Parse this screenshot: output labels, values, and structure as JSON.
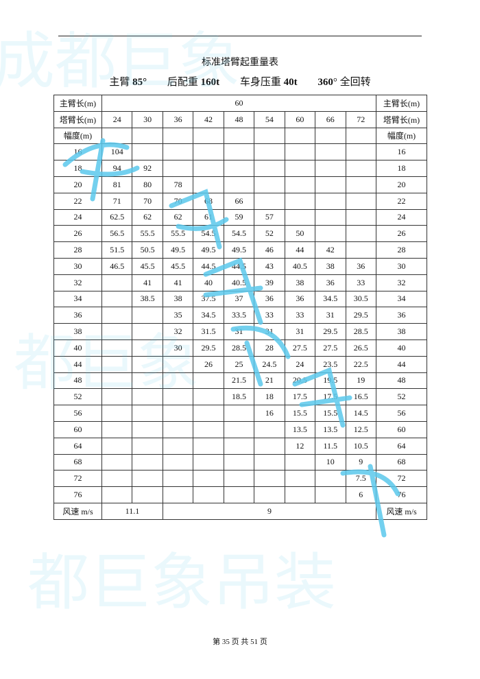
{
  "title": "标准塔臂起重量表",
  "subtitle": {
    "boom_label": "主臂",
    "boom_value": "85°",
    "counterweight_label": "后配重",
    "counterweight_value": "160t",
    "ballast_label": "车身压重",
    "ballast_value": "40t",
    "rotation_value": "360",
    "rotation_label": "°  全回转"
  },
  "table": {
    "main_boom_label": "主臂长(m)",
    "main_boom_value": "60",
    "jib_label": "塔臂长(m)",
    "jib_lengths": [
      "24",
      "30",
      "36",
      "42",
      "48",
      "54",
      "60",
      "66",
      "72"
    ],
    "radius_label": "幅度(m)",
    "rows": [
      {
        "r": "16",
        "v": [
          "104",
          "",
          "",
          "",
          "",
          "",
          "",
          "",
          ""
        ]
      },
      {
        "r": "18",
        "v": [
          "94",
          "92",
          "",
          "",
          "",
          "",
          "",
          "",
          ""
        ]
      },
      {
        "r": "20",
        "v": [
          "81",
          "80",
          "78",
          "",
          "",
          "",
          "",
          "",
          ""
        ]
      },
      {
        "r": "22",
        "v": [
          "71",
          "70",
          "70",
          "68",
          "66",
          "",
          "",
          "",
          ""
        ]
      },
      {
        "r": "24",
        "v": [
          "62.5",
          "62",
          "62",
          "61",
          "59",
          "57",
          "",
          "",
          ""
        ]
      },
      {
        "r": "26",
        "v": [
          "56.5",
          "55.5",
          "55.5",
          "54.5",
          "54.5",
          "52",
          "50",
          "",
          ""
        ]
      },
      {
        "r": "28",
        "v": [
          "51.5",
          "50.5",
          "49.5",
          "49.5",
          "49.5",
          "46",
          "44",
          "42",
          ""
        ]
      },
      {
        "r": "30",
        "v": [
          "46.5",
          "45.5",
          "45.5",
          "44.5",
          "44.5",
          "43",
          "40.5",
          "38",
          "36"
        ]
      },
      {
        "r": "32",
        "v": [
          "",
          "41",
          "41",
          "40",
          "40.5",
          "39",
          "38",
          "36",
          "33"
        ]
      },
      {
        "r": "34",
        "v": [
          "",
          "38.5",
          "38",
          "37.5",
          "37",
          "36",
          "36",
          "34.5",
          "30.5"
        ]
      },
      {
        "r": "36",
        "v": [
          "",
          "",
          "35",
          "34.5",
          "33.5",
          "33",
          "33",
          "31",
          "29.5"
        ]
      },
      {
        "r": "38",
        "v": [
          "",
          "",
          "32",
          "31.5",
          "31",
          "31",
          "31",
          "29.5",
          "28.5"
        ]
      },
      {
        "r": "40",
        "v": [
          "",
          "",
          "30",
          "29.5",
          "28.5",
          "28",
          "27.5",
          "27.5",
          "26.5"
        ]
      },
      {
        "r": "44",
        "v": [
          "",
          "",
          "",
          "26",
          "25",
          "24.5",
          "24",
          "23.5",
          "22.5"
        ]
      },
      {
        "r": "48",
        "v": [
          "",
          "",
          "",
          "",
          "21.5",
          "21",
          "20.5",
          "19.5",
          "19"
        ]
      },
      {
        "r": "52",
        "v": [
          "",
          "",
          "",
          "",
          "18.5",
          "18",
          "17.5",
          "17.5",
          "16.5"
        ]
      },
      {
        "r": "56",
        "v": [
          "",
          "",
          "",
          "",
          "",
          "16",
          "15.5",
          "15.5",
          "14.5"
        ]
      },
      {
        "r": "60",
        "v": [
          "",
          "",
          "",
          "",
          "",
          "",
          "13.5",
          "13.5",
          "12.5"
        ]
      },
      {
        "r": "64",
        "v": [
          "",
          "",
          "",
          "",
          "",
          "",
          "12",
          "11.5",
          "10.5"
        ]
      },
      {
        "r": "68",
        "v": [
          "",
          "",
          "",
          "",
          "",
          "",
          "",
          "10",
          "9"
        ]
      },
      {
        "r": "72",
        "v": [
          "",
          "",
          "",
          "",
          "",
          "",
          "",
          "",
          "7.5"
        ]
      },
      {
        "r": "76",
        "v": [
          "",
          "",
          "",
          "",
          "",
          "",
          "",
          "",
          "6"
        ]
      }
    ],
    "wind_label": "风速 m/s",
    "wind_short_jib": "11.1",
    "wind_long_jib": "9"
  },
  "footer": "第 35 页 共 51 页",
  "watermark": {
    "text": "成都巨象吊装",
    "color": "#5bc8ec"
  }
}
